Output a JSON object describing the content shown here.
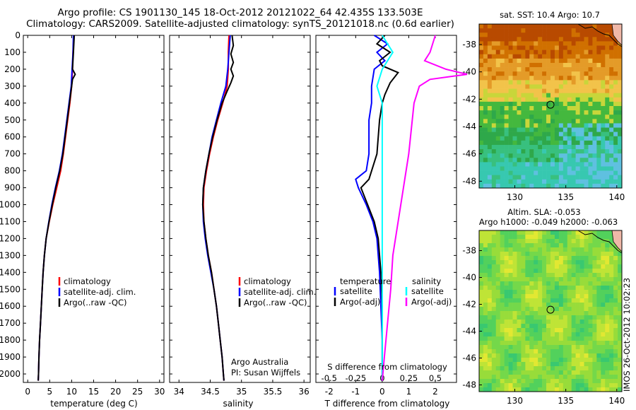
{
  "figure_title": "Argo profile: CS 1901130_145 18-Oct-2012 20121022_64 42.435S 133.503E",
  "figure_subtitle": "Climatology: CARS2009. Satellite-adjusted climatology: synTS_20121018.nc (0.6d earlier)",
  "colors": {
    "climatology": "#ff0000",
    "satellite": "#0000ff",
    "argo": "#000000",
    "sal_satellite": "#00ffff",
    "sal_argo": "#ff00ff"
  },
  "chart_data": [
    {
      "type": "line",
      "id": "temperature",
      "xlabel": "temperature (deg C)",
      "xlim": [
        -1,
        31
      ],
      "xticks": [
        "0",
        "5",
        "10",
        "15",
        "20",
        "25",
        "30"
      ],
      "ylim": [
        0,
        2050
      ],
      "yreverse": true,
      "yticks": [
        "0",
        "100",
        "200",
        "300",
        "400",
        "500",
        "600",
        "700",
        "800",
        "900",
        "1000",
        "1100",
        "1200",
        "1300",
        "1400",
        "1500",
        "1600",
        "1700",
        "1800",
        "1900",
        "2000"
      ],
      "legend": {
        "placement": "lower-center",
        "entries": [
          "climatology",
          "satellite-adj. clim.",
          "Argo(..raw -QC)"
        ]
      },
      "series": [
        {
          "name": "climatology",
          "color": "#ff0000",
          "points": [
            [
              10.5,
              0
            ],
            [
              10.3,
              100
            ],
            [
              10.2,
              200
            ],
            [
              10.0,
              300
            ],
            [
              9.6,
              400
            ],
            [
              9.1,
              500
            ],
            [
              8.6,
              600
            ],
            [
              8.1,
              700
            ],
            [
              7.5,
              800
            ],
            [
              6.6,
              900
            ],
            [
              5.7,
              1000
            ],
            [
              4.9,
              1100
            ],
            [
              4.2,
              1200
            ],
            [
              3.8,
              1300
            ],
            [
              3.5,
              1400
            ],
            [
              3.3,
              1500
            ],
            [
              3.1,
              1600
            ],
            [
              2.9,
              1700
            ],
            [
              2.7,
              1800
            ],
            [
              2.55,
              1900
            ],
            [
              2.45,
              2000
            ],
            [
              2.4,
              2040
            ]
          ]
        },
        {
          "name": "satellite-adj. clim.",
          "color": "#0000ff",
          "points": [
            [
              10.4,
              0
            ],
            [
              10.3,
              100
            ],
            [
              10.1,
              200
            ],
            [
              9.9,
              300
            ],
            [
              9.4,
              400
            ],
            [
              8.9,
              500
            ],
            [
              8.4,
              600
            ],
            [
              7.9,
              700
            ],
            [
              7.2,
              800
            ],
            [
              6.3,
              900
            ],
            [
              5.5,
              1000
            ],
            [
              4.8,
              1100
            ],
            [
              4.2,
              1200
            ],
            [
              3.8,
              1300
            ],
            [
              3.5,
              1400
            ],
            [
              3.3,
              1500
            ],
            [
              3.1,
              1600
            ],
            [
              2.9,
              1700
            ],
            [
              2.7,
              1800
            ],
            [
              2.55,
              1900
            ],
            [
              2.45,
              2000
            ],
            [
              2.4,
              2040
            ]
          ]
        },
        {
          "name": "Argo(..raw -QC)",
          "color": "#000000",
          "points": [
            [
              10.6,
              0
            ],
            [
              10.4,
              100
            ],
            [
              10.2,
              200
            ],
            [
              10.8,
              230
            ],
            [
              10.2,
              260
            ],
            [
              10.0,
              300
            ],
            [
              9.5,
              400
            ],
            [
              9.0,
              500
            ],
            [
              8.5,
              600
            ],
            [
              8.0,
              700
            ],
            [
              7.3,
              800
            ],
            [
              6.4,
              900
            ],
            [
              5.6,
              1000
            ],
            [
              4.85,
              1100
            ],
            [
              4.2,
              1200
            ],
            [
              3.8,
              1300
            ],
            [
              3.5,
              1400
            ],
            [
              3.3,
              1500
            ],
            [
              3.1,
              1600
            ],
            [
              2.9,
              1700
            ],
            [
              2.7,
              1800
            ],
            [
              2.55,
              1900
            ],
            [
              2.45,
              2000
            ],
            [
              2.4,
              2040
            ]
          ]
        }
      ]
    },
    {
      "type": "line",
      "id": "salinity",
      "xlabel": "salinity",
      "xlim": [
        33.85,
        36.1
      ],
      "xticks": [
        "34",
        "34.5",
        "35",
        "35.5",
        "36"
      ],
      "ylim": [
        0,
        2050
      ],
      "yreverse": true,
      "legend": {
        "placement": "lower-center",
        "entries": [
          "climatology",
          "satellite-adj. clim.",
          "Argo(..raw -QC)"
        ]
      },
      "annotations": [
        "Argo Australia",
        "PI: Susan Wijffels"
      ],
      "series": [
        {
          "name": "climatology",
          "color": "#ff0000",
          "points": [
            [
              34.8,
              0
            ],
            [
              34.79,
              100
            ],
            [
              34.79,
              200
            ],
            [
              34.77,
              300
            ],
            [
              34.7,
              400
            ],
            [
              34.62,
              500
            ],
            [
              34.55,
              600
            ],
            [
              34.49,
              700
            ],
            [
              34.44,
              800
            ],
            [
              34.4,
              900
            ],
            [
              34.39,
              1000
            ],
            [
              34.4,
              1100
            ],
            [
              34.43,
              1200
            ],
            [
              34.47,
              1300
            ],
            [
              34.52,
              1400
            ],
            [
              34.56,
              1500
            ],
            [
              34.6,
              1600
            ],
            [
              34.63,
              1700
            ],
            [
              34.66,
              1800
            ],
            [
              34.69,
              1900
            ],
            [
              34.71,
              2000
            ],
            [
              34.72,
              2040
            ]
          ]
        },
        {
          "name": "satellite-adj. clim.",
          "color": "#0000ff",
          "points": [
            [
              34.82,
              0
            ],
            [
              34.8,
              100
            ],
            [
              34.78,
              200
            ],
            [
              34.75,
              300
            ],
            [
              34.67,
              400
            ],
            [
              34.6,
              500
            ],
            [
              34.53,
              600
            ],
            [
              34.48,
              700
            ],
            [
              34.43,
              800
            ],
            [
              34.39,
              900
            ],
            [
              34.38,
              1000
            ],
            [
              34.39,
              1100
            ],
            [
              34.42,
              1200
            ],
            [
              34.46,
              1300
            ],
            [
              34.51,
              1400
            ],
            [
              34.56,
              1500
            ],
            [
              34.6,
              1600
            ],
            [
              34.63,
              1700
            ],
            [
              34.66,
              1800
            ],
            [
              34.69,
              1900
            ],
            [
              34.71,
              2000
            ],
            [
              34.72,
              2040
            ]
          ]
        },
        {
          "name": "Argo(..raw -QC)",
          "color": "#000000",
          "points": [
            [
              34.85,
              0
            ],
            [
              34.87,
              60
            ],
            [
              34.83,
              110
            ],
            [
              34.87,
              160
            ],
            [
              34.83,
              200
            ],
            [
              34.87,
              240
            ],
            [
              34.83,
              280
            ],
            [
              34.77,
              330
            ],
            [
              34.69,
              400
            ],
            [
              34.61,
              500
            ],
            [
              34.54,
              600
            ],
            [
              34.48,
              700
            ],
            [
              34.43,
              800
            ],
            [
              34.39,
              900
            ],
            [
              34.38,
              1000
            ],
            [
              34.4,
              1100
            ],
            [
              34.43,
              1200
            ],
            [
              34.47,
              1300
            ],
            [
              34.52,
              1400
            ],
            [
              34.56,
              1500
            ],
            [
              34.6,
              1600
            ],
            [
              34.63,
              1700
            ],
            [
              34.66,
              1800
            ],
            [
              34.69,
              1900
            ],
            [
              34.71,
              2000
            ],
            [
              34.72,
              2040
            ]
          ]
        }
      ]
    },
    {
      "type": "line",
      "id": "differences",
      "xlabel": "T difference from climatology",
      "xlabel_top": "S difference from climatology",
      "xlim": [
        -2.5,
        2.8
      ],
      "xticks": [
        "-2",
        "-1",
        "0",
        "1",
        "2"
      ],
      "xticks_top": [
        "-0.5",
        "-0.25",
        "0",
        "0.25",
        "0.5"
      ],
      "ylim": [
        0,
        2050
      ],
      "yreverse": true,
      "legend": {
        "placement": "lower-center",
        "groups": [
          {
            "title": "temperature",
            "entries": [
              "satellite",
              "Argo(-adj)"
            ]
          },
          {
            "title": "salinity",
            "entries": [
              "satellite",
              "Argo(-adj)"
            ]
          }
        ]
      },
      "series": [
        {
          "name": "satellite",
          "group": "temperature",
          "color": "#0000ff",
          "points": [
            [
              -0.3,
              0
            ],
            [
              0.2,
              50
            ],
            [
              -0.2,
              100
            ],
            [
              0.1,
              150
            ],
            [
              -0.3,
              200
            ],
            [
              -0.4,
              300
            ],
            [
              -0.4,
              400
            ],
            [
              -0.5,
              500
            ],
            [
              -0.5,
              600
            ],
            [
              -0.5,
              700
            ],
            [
              -0.6,
              800
            ],
            [
              -1.0,
              850
            ],
            [
              -0.9,
              900
            ],
            [
              -0.6,
              1000
            ],
            [
              -0.35,
              1100
            ],
            [
              -0.2,
              1200
            ],
            [
              -0.1,
              1400
            ],
            [
              -0.05,
              1600
            ],
            [
              0.0,
              1800
            ],
            [
              0.0,
              2000
            ],
            [
              0.0,
              2040
            ]
          ]
        },
        {
          "name": "Argo(-adj)",
          "group": "temperature",
          "color": "#000000",
          "points": [
            [
              0.1,
              0
            ],
            [
              -0.2,
              50
            ],
            [
              0.3,
              100
            ],
            [
              -0.1,
              150
            ],
            [
              0.0,
              180
            ],
            [
              0.6,
              220
            ],
            [
              0.3,
              280
            ],
            [
              0.1,
              350
            ],
            [
              0.0,
              400
            ],
            [
              -0.1,
              500
            ],
            [
              -0.2,
              700
            ],
            [
              -0.5,
              850
            ],
            [
              -0.8,
              900
            ],
            [
              -0.55,
              1000
            ],
            [
              -0.3,
              1100
            ],
            [
              -0.15,
              1200
            ],
            [
              -0.05,
              1400
            ],
            [
              0.0,
              1600
            ],
            [
              0.0,
              1800
            ],
            [
              0.0,
              2000
            ],
            [
              0.0,
              2040
            ]
          ]
        },
        {
          "name": "satellite",
          "group": "salinity",
          "color": "#00ffff",
          "points": [
            [
              0.0,
              0
            ],
            [
              0.1,
              100
            ],
            [
              0.0,
              200
            ],
            [
              -0.05,
              300
            ],
            [
              0.0,
              400
            ],
            [
              0.0,
              800
            ],
            [
              0.0,
              1200
            ],
            [
              0.0,
              1600
            ],
            [
              0.0,
              2040
            ]
          ]
        },
        {
          "name": "Argo(-adj)",
          "group": "salinity",
          "color": "#ff00ff",
          "points": [
            [
              0.5,
              0
            ],
            [
              0.45,
              100
            ],
            [
              0.4,
              150
            ],
            [
              0.6,
              200
            ],
            [
              0.8,
              230
            ],
            [
              0.45,
              260
            ],
            [
              0.35,
              300
            ],
            [
              0.3,
              400
            ],
            [
              0.25,
              700
            ],
            [
              0.2,
              900
            ],
            [
              0.15,
              1100
            ],
            [
              0.1,
              1300
            ],
            [
              0.08,
              1500
            ],
            [
              0.05,
              1700
            ],
            [
              0.02,
              1900
            ],
            [
              0.0,
              2040
            ]
          ]
        }
      ]
    },
    {
      "type": "heatmap",
      "id": "sst-map",
      "title": "sat. SST: 10.4 Argo: 10.7",
      "xlim": [
        126.5,
        140.5
      ],
      "ylim": [
        -48.5,
        -36.5
      ],
      "xticks": [
        "130",
        "135",
        "140"
      ],
      "yticks": [
        "-38",
        "-40",
        "-42",
        "-44",
        "-46",
        "-48"
      ],
      "marker": {
        "lon": 133.5,
        "lat": -42.4
      },
      "colormap": [
        "#b84a00",
        "#d07000",
        "#e49b28",
        "#f2c34a",
        "#c8d63a",
        "#44b83e",
        "#2ea84a",
        "#38c07e",
        "#37c8b0",
        "#5fc0e0"
      ]
    },
    {
      "type": "heatmap",
      "id": "sla-map",
      "title": "Altim. SLA: -0.053",
      "subtitle": "Argo h1000: -0.049 h2000: -0.063",
      "xlim": [
        126.5,
        140.5
      ],
      "ylim": [
        -48.5,
        -36.5
      ],
      "xticks": [
        "130",
        "135",
        "140"
      ],
      "yticks": [
        "-38",
        "-40",
        "-42",
        "-44",
        "-46",
        "-48"
      ],
      "marker": {
        "lon": 133.5,
        "lat": -42.4
      },
      "colormap": [
        "#39c870",
        "#52d15c",
        "#74d84a",
        "#98dc3a",
        "#bfe436",
        "#e2e832"
      ]
    }
  ],
  "credit": "IMOS 26-Oct-2012 10:02:23"
}
